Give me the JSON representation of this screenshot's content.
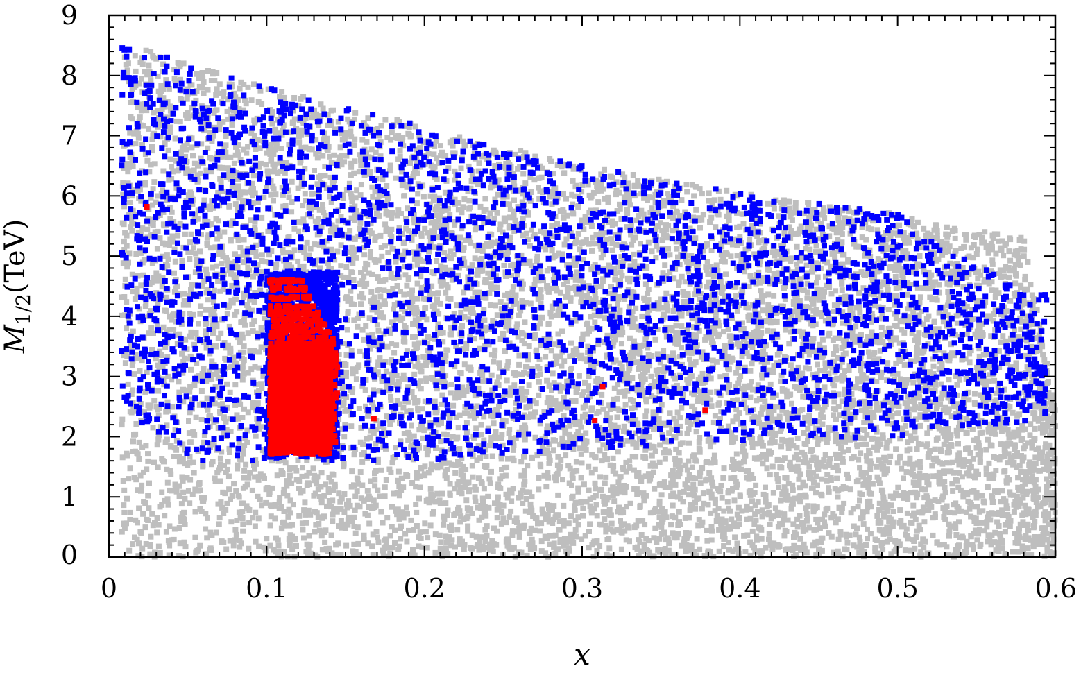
{
  "chart_data": {
    "type": "scatter",
    "xlabel": "x",
    "ylabel": {
      "main": "M",
      "sub": "1/2",
      "unit": "(TeV)"
    },
    "xlim": [
      0,
      0.6
    ],
    "ylim": [
      0,
      9
    ],
    "xticks": [
      "0",
      "0.1",
      "0.2",
      "0.3",
      "0.4",
      "0.5",
      "0.6"
    ],
    "yticks": [
      "0",
      "1",
      "2",
      "3",
      "4",
      "5",
      "6",
      "7",
      "8",
      "9"
    ],
    "grid": false,
    "colors": {
      "gray": "#bebebe",
      "blue": "#0000ff",
      "red": "#ff0000"
    },
    "series": [
      {
        "color": "gray",
        "region": {
          "x_range": [
            0.008,
            0.6
          ],
          "y_bottom": [
            0.0,
            0.0
          ],
          "y_top_at_x": [
            [
              0.008,
              8.55
            ],
            [
              0.1,
              7.8
            ],
            [
              0.2,
              7.15
            ],
            [
              0.3,
              6.5
            ],
            [
              0.4,
              6.05
            ],
            [
              0.5,
              5.7
            ],
            [
              0.58,
              5.3
            ],
            [
              0.6,
              2.5
            ]
          ]
        },
        "approx_points": 9000
      },
      {
        "color": "blue",
        "region": {
          "x_range": [
            0.008,
            0.595
          ],
          "y_bottom_at_x": [
            [
              0.008,
              2.5
            ],
            [
              0.05,
              1.6
            ],
            [
              0.1,
              1.6
            ],
            [
              0.2,
              1.6
            ],
            [
              0.3,
              1.8
            ],
            [
              0.4,
              1.9
            ],
            [
              0.5,
              2.0
            ],
            [
              0.595,
              2.3
            ]
          ],
          "y_top_at_x": [
            [
              0.008,
              8.55
            ],
            [
              0.1,
              7.8
            ],
            [
              0.2,
              7.15
            ],
            [
              0.3,
              6.5
            ],
            [
              0.4,
              6.05
            ],
            [
              0.5,
              5.7
            ],
            [
              0.58,
              4.4
            ]
          ]
        },
        "dense_block": {
          "x_range": [
            0.1,
            0.145
          ],
          "y_range": [
            1.65,
            4.75
          ]
        },
        "approx_points": 2800
      },
      {
        "color": "red",
        "dense_block": {
          "x_range": [
            0.102,
            0.145
          ],
          "y_range": [
            1.7,
            3.5
          ]
        },
        "stripes_y": [
          3.55,
          3.65,
          3.75,
          3.85,
          3.95,
          4.05,
          4.15,
          4.3,
          4.45,
          4.58
        ],
        "isolated_points": [
          {
            "x": 0.024,
            "y": 5.82
          },
          {
            "x": 0.168,
            "y": 2.3
          },
          {
            "x": 0.308,
            "y": 2.27
          },
          {
            "x": 0.313,
            "y": 2.83
          },
          {
            "x": 0.378,
            "y": 2.44
          },
          {
            "x": 0.142,
            "y": 3.62
          },
          {
            "x": 0.138,
            "y": 3.3
          },
          {
            "x": 0.135,
            "y": 2.02
          },
          {
            "x": 0.14,
            "y": 1.9
          }
        ]
      }
    ]
  }
}
